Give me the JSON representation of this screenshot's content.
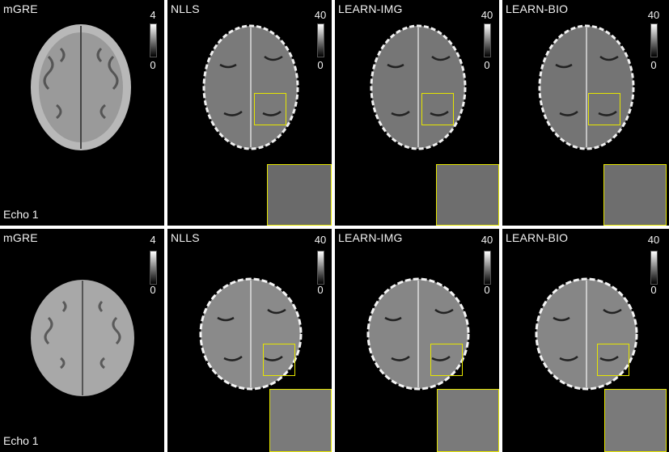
{
  "rows": [
    {
      "echo_label": "Echo 1",
      "panels": [
        {
          "title": "mGRE",
          "cbar_max": "4",
          "cbar_min": "0",
          "kind": "mgre"
        },
        {
          "title": "NLLS",
          "cbar_max": "40",
          "cbar_min": "0",
          "kind": "map"
        },
        {
          "title": "LEARN-IMG",
          "cbar_max": "40",
          "cbar_min": "0",
          "kind": "map"
        },
        {
          "title": "LEARN-BIO",
          "cbar_max": "40",
          "cbar_min": "0",
          "kind": "map"
        }
      ]
    },
    {
      "echo_label": "Echo 1",
      "panels": [
        {
          "title": "mGRE",
          "cbar_max": "4",
          "cbar_min": "0",
          "kind": "mgre"
        },
        {
          "title": "NLLS",
          "cbar_max": "40",
          "cbar_min": "0",
          "kind": "map"
        },
        {
          "title": "LEARN-IMG",
          "cbar_max": "40",
          "cbar_min": "0",
          "kind": "map"
        },
        {
          "title": "LEARN-BIO",
          "cbar_max": "40",
          "cbar_min": "0",
          "kind": "map"
        }
      ]
    }
  ],
  "colors": {
    "roi": "#e6e600",
    "background": "#000000"
  }
}
